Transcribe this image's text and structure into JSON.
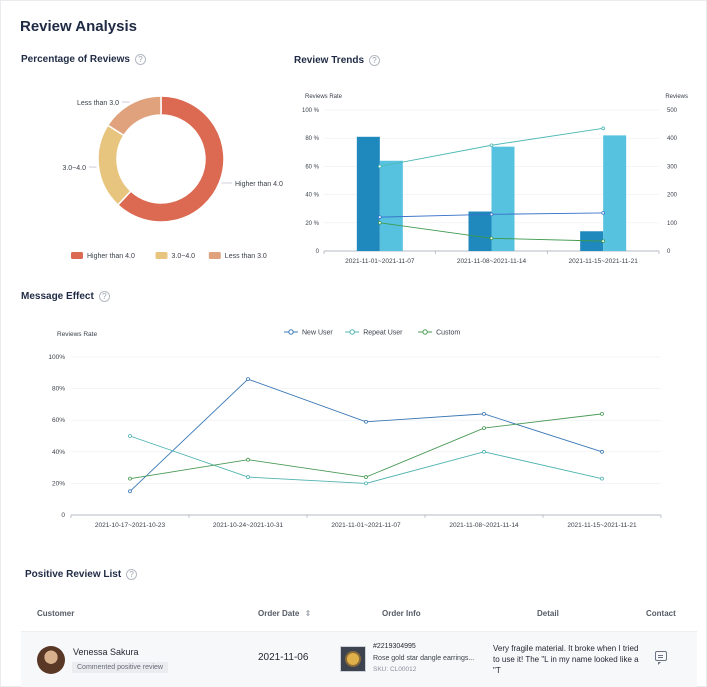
{
  "page": {
    "title": "Review Analysis"
  },
  "sections": {
    "percentage": "Percentage of Reviews",
    "trends": "Review Trends",
    "message": "Message Effect",
    "positive": "Positive Review List"
  },
  "help_icon": "?",
  "chart_data": [
    {
      "id": "percentage_of_reviews",
      "type": "pie",
      "labels": [
        "Higher than 4.0",
        "3.0~4.0",
        "Less than 3.0"
      ],
      "values": [
        62,
        22,
        16
      ],
      "colors": [
        "#dc6a52",
        "#e8c57f",
        "#dfa27c"
      ],
      "legend": "bottom"
    },
    {
      "id": "review_trends",
      "type": "bar",
      "categories": [
        "2021-11-01~2021-11-07",
        "2021-11-08~2021-11-14",
        "2021-11-15~2021-11-21"
      ],
      "ylabel": "Reviews Rate",
      "y2label": "Reviews",
      "ylim": [
        0,
        100
      ],
      "y2lim": [
        0,
        500
      ],
      "yticks": [
        "0",
        "20 %",
        "40 %",
        "60 %",
        "80 %",
        "100 %"
      ],
      "y2ticks": [
        "0",
        "100",
        "200",
        "300",
        "400",
        "500"
      ],
      "bars": [
        {
          "values": [
            81,
            28,
            14
          ],
          "color": "#1f88bd"
        },
        {
          "values": [
            64,
            74,
            82
          ],
          "color": "#56c2e0"
        }
      ],
      "lines": [
        {
          "values": [
            60,
            75,
            87
          ],
          "color": "#4cb8b3",
          "axis": "left"
        },
        {
          "values": [
            24,
            26,
            27
          ],
          "color": "#3a74c9",
          "axis": "left"
        },
        {
          "values": [
            20,
            9,
            7
          ],
          "color": "#3f9a4e",
          "axis": "left"
        }
      ]
    },
    {
      "id": "message_effect",
      "type": "line",
      "categories": [
        "2021-10-17~2021-10-23",
        "2021-10-24~2021-10-31",
        "2021-11-01~2021-11-07",
        "2021-11-08~2021-11-14",
        "2021-11-15~2021-11-21"
      ],
      "ylabel": "Reviews Rate",
      "ylim": [
        0,
        100
      ],
      "yticks": [
        "0",
        "20%",
        "40%",
        "60%",
        "80%",
        "100%"
      ],
      "legend": "top-center",
      "series": [
        {
          "name": "New User",
          "values": [
            15,
            86,
            59,
            64,
            40
          ],
          "color": "#3a78b5"
        },
        {
          "name": "Repeat User",
          "values": [
            50,
            24,
            20,
            40,
            23
          ],
          "color": "#4fb3b0"
        },
        {
          "name": "Custom",
          "values": [
            23,
            35,
            24,
            55,
            64
          ],
          "color": "#4a9a55"
        }
      ]
    }
  ],
  "positive_list": {
    "headers": {
      "customer": "Customer",
      "order_date": "Order Date",
      "sort_icon": "⇕",
      "order_info": "Order Info",
      "detail": "Detail",
      "contact": "Contact"
    },
    "rows": [
      {
        "customer": "Venessa Sakura",
        "badge": "Commented positive review",
        "order_date": "2021-11-06",
        "order_no": "#2219304995",
        "product": "Rose gold star dangle earrings...",
        "sku": "SKU:  CL00012",
        "detail": "Very fragile material. It broke when I tried to use it! The \"L in my name looked like a \"T"
      }
    ]
  }
}
